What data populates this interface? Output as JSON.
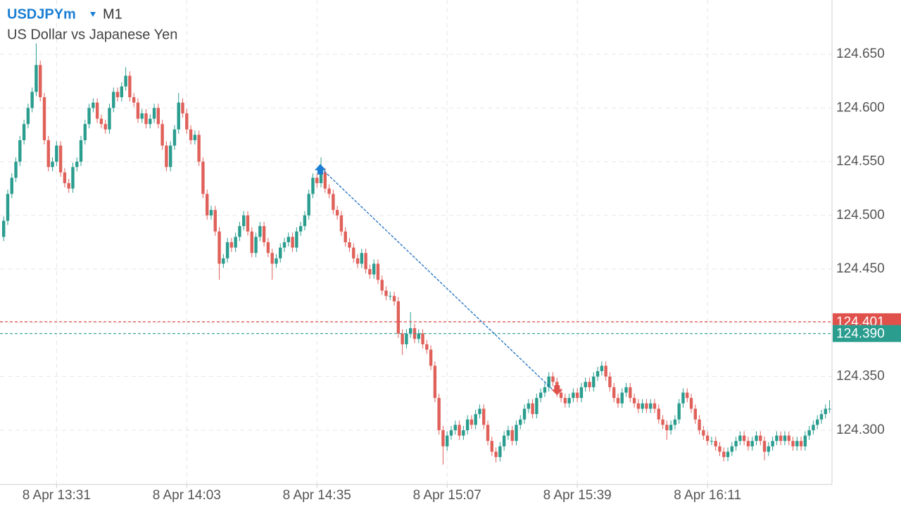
{
  "chart_data": {
    "type": "candlestick",
    "symbol": "USDJPYm",
    "timeframe": "M1",
    "description": "US Dollar vs Japanese Yen",
    "up_color": "#2a9d8f",
    "down_color": "#e0605a",
    "grid": true,
    "ylim": [
      124.2495,
      124.7005
    ],
    "yticks": [
      {
        "value": 124.3,
        "label": "124.300"
      },
      {
        "value": 124.35,
        "label": "124.350"
      },
      {
        "value": 124.4,
        "label": "124.400"
      },
      {
        "value": 124.45,
        "label": "124.450"
      },
      {
        "value": 124.5,
        "label": "124.500"
      },
      {
        "value": 124.55,
        "label": "124.550"
      },
      {
        "value": 124.6,
        "label": "124.600"
      },
      {
        "value": 124.65,
        "label": "124.650"
      }
    ],
    "xlim": [
      -0.9,
      203.6
    ],
    "xticks": [
      {
        "value": 13,
        "label": "8 Apr 13:31"
      },
      {
        "value": 45,
        "label": "8 Apr 14:03"
      },
      {
        "value": 77,
        "label": "8 Apr 14:35"
      },
      {
        "value": 109,
        "label": "8 Apr 15:07"
      },
      {
        "value": 141,
        "label": "8 Apr 15:39"
      },
      {
        "value": 173,
        "label": "8 Apr 16:11"
      }
    ],
    "price_lines": [
      {
        "value": 124.401,
        "label": "124.401",
        "color": "#e0514c"
      },
      {
        "value": 124.39,
        "label": "124.390",
        "color": "#2a9d8f"
      }
    ],
    "trade": {
      "entry": {
        "index": 78,
        "price": 124.544
      },
      "exit": {
        "index": 136,
        "price": 124.334
      }
    },
    "candles": [
      [
        124.48,
        124.499,
        124.476,
        124.495
      ],
      [
        124.495,
        124.524,
        124.491,
        124.52
      ],
      [
        124.52,
        124.539,
        124.516,
        124.535
      ],
      [
        124.535,
        124.554,
        124.531,
        124.55
      ],
      [
        124.55,
        124.574,
        124.546,
        124.57
      ],
      [
        124.57,
        124.589,
        124.566,
        124.585
      ],
      [
        124.585,
        124.604,
        124.581,
        124.6
      ],
      [
        124.6,
        124.619,
        124.596,
        124.615
      ],
      [
        124.615,
        124.66,
        124.611,
        124.64
      ],
      [
        124.64,
        124.644,
        124.606,
        124.61
      ],
      [
        124.61,
        124.614,
        124.566,
        124.57
      ],
      [
        124.57,
        124.574,
        124.541,
        124.545
      ],
      [
        124.545,
        124.554,
        124.541,
        124.55
      ],
      [
        124.55,
        124.569,
        124.546,
        124.565
      ],
      [
        124.565,
        124.569,
        124.536,
        124.54
      ],
      [
        124.54,
        124.544,
        124.526,
        124.53
      ],
      [
        124.53,
        124.534,
        124.521,
        124.525
      ],
      [
        124.525,
        124.549,
        124.521,
        124.545
      ],
      [
        124.545,
        124.554,
        124.541,
        124.55
      ],
      [
        124.55,
        124.574,
        124.546,
        124.57
      ],
      [
        124.57,
        124.589,
        124.566,
        124.585
      ],
      [
        124.585,
        124.604,
        124.581,
        124.6
      ],
      [
        124.6,
        124.609,
        124.596,
        124.605
      ],
      [
        124.605,
        124.609,
        124.586,
        124.59
      ],
      [
        124.59,
        124.594,
        124.581,
        124.585
      ],
      [
        124.585,
        124.589,
        124.576,
        124.58
      ],
      [
        124.58,
        124.604,
        124.576,
        124.6
      ],
      [
        124.6,
        124.619,
        124.596,
        124.615
      ],
      [
        124.615,
        124.619,
        124.606,
        124.61
      ],
      [
        124.61,
        124.624,
        124.606,
        124.62
      ],
      [
        124.62,
        124.638,
        124.616,
        124.63
      ],
      [
        124.63,
        124.634,
        124.606,
        124.61
      ],
      [
        124.61,
        124.614,
        124.601,
        124.605
      ],
      [
        124.605,
        124.609,
        124.586,
        124.59
      ],
      [
        124.59,
        124.599,
        124.586,
        124.595
      ],
      [
        124.595,
        124.599,
        124.581,
        124.585
      ],
      [
        124.585,
        124.594,
        124.581,
        124.59
      ],
      [
        124.59,
        124.604,
        124.586,
        124.6
      ],
      [
        124.6,
        124.604,
        124.581,
        124.585
      ],
      [
        124.585,
        124.589,
        124.561,
        124.565
      ],
      [
        124.565,
        124.569,
        124.541,
        124.545
      ],
      [
        124.545,
        124.569,
        124.541,
        124.565
      ],
      [
        124.565,
        124.584,
        124.561,
        124.58
      ],
      [
        124.58,
        124.614,
        124.576,
        124.605
      ],
      [
        124.605,
        124.609,
        124.591,
        124.595
      ],
      [
        124.595,
        124.599,
        124.576,
        124.58
      ],
      [
        124.58,
        124.584,
        124.566,
        124.57
      ],
      [
        124.57,
        124.579,
        124.566,
        124.575
      ],
      [
        124.575,
        124.579,
        124.546,
        124.55
      ],
      [
        124.55,
        124.554,
        124.516,
        124.52
      ],
      [
        124.52,
        124.524,
        124.496,
        124.5
      ],
      [
        124.5,
        124.509,
        124.496,
        124.505
      ],
      [
        124.505,
        124.509,
        124.481,
        124.485
      ],
      [
        124.485,
        124.489,
        124.44,
        124.455
      ],
      [
        124.455,
        124.464,
        124.451,
        124.46
      ],
      [
        124.46,
        124.479,
        124.456,
        124.475
      ],
      [
        124.475,
        124.479,
        124.466,
        124.47
      ],
      [
        124.47,
        124.484,
        124.466,
        124.48
      ],
      [
        124.48,
        124.494,
        124.476,
        124.49
      ],
      [
        124.49,
        124.504,
        124.486,
        124.5
      ],
      [
        124.5,
        124.504,
        124.481,
        124.485
      ],
      [
        124.485,
        124.489,
        124.461,
        124.465
      ],
      [
        124.465,
        124.484,
        124.461,
        124.48
      ],
      [
        124.48,
        124.494,
        124.476,
        124.49
      ],
      [
        124.49,
        124.494,
        124.471,
        124.475
      ],
      [
        124.475,
        124.479,
        124.461,
        124.465
      ],
      [
        124.465,
        124.469,
        124.44,
        124.455
      ],
      [
        124.455,
        124.464,
        124.451,
        124.46
      ],
      [
        124.46,
        124.474,
        124.456,
        124.47
      ],
      [
        124.47,
        124.479,
        124.466,
        124.475
      ],
      [
        124.475,
        124.484,
        124.471,
        124.48
      ],
      [
        124.48,
        124.484,
        124.466,
        124.47
      ],
      [
        124.47,
        124.489,
        124.466,
        124.485
      ],
      [
        124.485,
        124.494,
        124.481,
        124.49
      ],
      [
        124.49,
        124.504,
        124.486,
        124.5
      ],
      [
        124.5,
        124.524,
        124.496,
        124.52
      ],
      [
        124.52,
        124.539,
        124.516,
        124.535
      ],
      [
        124.535,
        124.539,
        124.526,
        124.53
      ],
      [
        124.53,
        124.554,
        124.526,
        124.54
      ],
      [
        124.54,
        124.544,
        124.521,
        124.525
      ],
      [
        124.525,
        124.529,
        124.516,
        124.52
      ],
      [
        124.52,
        124.524,
        124.501,
        124.505
      ],
      [
        124.505,
        124.509,
        124.496,
        124.5
      ],
      [
        124.5,
        124.504,
        124.481,
        124.485
      ],
      [
        124.485,
        124.489,
        124.471,
        124.475
      ],
      [
        124.475,
        124.479,
        124.466,
        124.47
      ],
      [
        124.47,
        124.474,
        124.456,
        124.46
      ],
      [
        124.46,
        124.464,
        124.451,
        124.455
      ],
      [
        124.455,
        124.469,
        124.451,
        124.465
      ],
      [
        124.465,
        124.469,
        124.446,
        124.45
      ],
      [
        124.45,
        124.454,
        124.441,
        124.445
      ],
      [
        124.445,
        124.459,
        124.441,
        124.455
      ],
      [
        124.455,
        124.459,
        124.436,
        124.44
      ],
      [
        124.44,
        124.444,
        124.426,
        124.43
      ],
      [
        124.43,
        124.434,
        124.421,
        124.425
      ],
      [
        124.425,
        124.429,
        124.421,
        124.425
      ],
      [
        124.425,
        124.429,
        124.416,
        124.42
      ],
      [
        124.42,
        124.424,
        124.386,
        124.39
      ],
      [
        124.39,
        124.394,
        124.37,
        124.38
      ],
      [
        124.38,
        124.394,
        124.376,
        124.39
      ],
      [
        124.39,
        124.41,
        124.386,
        124.395
      ],
      [
        124.395,
        124.399,
        124.381,
        124.385
      ],
      [
        124.385,
        124.394,
        124.381,
        124.39
      ],
      [
        124.39,
        124.394,
        124.376,
        124.38
      ],
      [
        124.38,
        124.384,
        124.371,
        124.375
      ],
      [
        124.375,
        124.379,
        124.356,
        124.36
      ],
      [
        124.36,
        124.364,
        124.326,
        124.33
      ],
      [
        124.33,
        124.334,
        124.296,
        124.3
      ],
      [
        124.3,
        124.304,
        124.268,
        124.285
      ],
      [
        124.285,
        124.299,
        124.281,
        124.295
      ],
      [
        124.295,
        124.304,
        124.291,
        124.3
      ],
      [
        124.3,
        124.309,
        124.296,
        124.305
      ],
      [
        124.305,
        124.309,
        124.291,
        124.295
      ],
      [
        124.295,
        124.304,
        124.291,
        124.3
      ],
      [
        124.3,
        124.314,
        124.296,
        124.31
      ],
      [
        124.31,
        124.314,
        124.301,
        124.305
      ],
      [
        124.305,
        124.319,
        124.301,
        124.315
      ],
      [
        124.315,
        124.324,
        124.311,
        124.32
      ],
      [
        124.32,
        124.324,
        124.301,
        124.305
      ],
      [
        124.305,
        124.309,
        124.286,
        124.29
      ],
      [
        124.29,
        124.294,
        124.276,
        124.28
      ],
      [
        124.28,
        124.284,
        124.27,
        124.275
      ],
      [
        124.275,
        124.289,
        124.271,
        124.285
      ],
      [
        124.285,
        124.299,
        124.281,
        124.295
      ],
      [
        124.295,
        124.304,
        124.291,
        124.3
      ],
      [
        124.3,
        124.304,
        124.286,
        124.29
      ],
      [
        124.29,
        124.309,
        124.286,
        124.305
      ],
      [
        124.305,
        124.314,
        124.301,
        124.31
      ],
      [
        124.31,
        124.324,
        124.306,
        124.32
      ],
      [
        124.32,
        124.329,
        124.316,
        124.325
      ],
      [
        124.325,
        124.329,
        124.311,
        124.315
      ],
      [
        124.315,
        124.334,
        124.311,
        124.33
      ],
      [
        124.33,
        124.339,
        124.326,
        124.335
      ],
      [
        124.335,
        124.344,
        124.331,
        124.34
      ],
      [
        124.34,
        124.354,
        124.336,
        124.35
      ],
      [
        124.35,
        124.354,
        124.341,
        124.345
      ],
      [
        124.345,
        124.349,
        124.331,
        124.335
      ],
      [
        124.335,
        124.339,
        124.326,
        124.33
      ],
      [
        124.33,
        124.334,
        124.321,
        124.325
      ],
      [
        124.325,
        124.334,
        124.321,
        124.33
      ],
      [
        124.33,
        124.339,
        124.326,
        124.335
      ],
      [
        124.335,
        124.339,
        124.326,
        124.33
      ],
      [
        124.33,
        124.344,
        124.326,
        124.34
      ],
      [
        124.34,
        124.349,
        124.336,
        124.345
      ],
      [
        124.345,
        124.349,
        124.336,
        124.34
      ],
      [
        124.34,
        124.354,
        124.336,
        124.35
      ],
      [
        124.35,
        124.359,
        124.346,
        124.355
      ],
      [
        124.355,
        124.364,
        124.351,
        124.36
      ],
      [
        124.36,
        124.364,
        124.346,
        124.35
      ],
      [
        124.35,
        124.354,
        124.336,
        124.34
      ],
      [
        124.34,
        124.344,
        124.326,
        124.33
      ],
      [
        124.33,
        124.334,
        124.321,
        124.325
      ],
      [
        124.325,
        124.339,
        124.321,
        124.335
      ],
      [
        124.335,
        124.344,
        124.331,
        124.34
      ],
      [
        124.34,
        124.344,
        124.326,
        124.33
      ],
      [
        124.33,
        124.334,
        124.321,
        124.325
      ],
      [
        124.325,
        124.329,
        124.316,
        124.32
      ],
      [
        124.32,
        124.329,
        124.316,
        124.325
      ],
      [
        124.325,
        124.329,
        124.316,
        124.32
      ],
      [
        124.32,
        124.329,
        124.316,
        124.325
      ],
      [
        124.325,
        124.329,
        124.316,
        124.32
      ],
      [
        124.32,
        124.324,
        124.306,
        124.31
      ],
      [
        124.31,
        124.314,
        124.301,
        124.305
      ],
      [
        124.305,
        124.309,
        124.291,
        124.3
      ],
      [
        124.3,
        124.309,
        124.296,
        124.305
      ],
      [
        124.305,
        124.314,
        124.301,
        124.31
      ],
      [
        124.31,
        124.329,
        124.306,
        124.325
      ],
      [
        124.325,
        124.339,
        124.321,
        124.335
      ],
      [
        124.335,
        124.339,
        124.326,
        124.33
      ],
      [
        124.33,
        124.334,
        124.316,
        124.32
      ],
      [
        124.32,
        124.324,
        124.306,
        124.31
      ],
      [
        124.31,
        124.314,
        124.296,
        124.3
      ],
      [
        124.3,
        124.304,
        124.291,
        124.295
      ],
      [
        124.295,
        124.299,
        124.286,
        124.29
      ],
      [
        124.29,
        124.294,
        124.286,
        124.29
      ],
      [
        124.29,
        124.294,
        124.281,
        124.285
      ],
      [
        124.285,
        124.289,
        124.276,
        124.28
      ],
      [
        124.28,
        124.284,
        124.271,
        124.275
      ],
      [
        124.275,
        124.284,
        124.271,
        124.28
      ],
      [
        124.28,
        124.289,
        124.276,
        124.285
      ],
      [
        124.285,
        124.294,
        124.281,
        124.29
      ],
      [
        124.29,
        124.299,
        124.286,
        124.295
      ],
      [
        124.295,
        124.299,
        124.286,
        124.29
      ],
      [
        124.29,
        124.294,
        124.281,
        124.285
      ],
      [
        124.285,
        124.294,
        124.281,
        124.29
      ],
      [
        124.29,
        124.299,
        124.286,
        124.295
      ],
      [
        124.295,
        124.299,
        124.286,
        124.29
      ],
      [
        124.29,
        124.294,
        124.272,
        124.28
      ],
      [
        124.28,
        124.289,
        124.276,
        124.285
      ],
      [
        124.285,
        124.294,
        124.281,
        124.29
      ],
      [
        124.29,
        124.299,
        124.286,
        124.295
      ],
      [
        124.295,
        124.299,
        124.286,
        124.29
      ],
      [
        124.29,
        124.299,
        124.286,
        124.295
      ],
      [
        124.295,
        124.299,
        124.286,
        124.29
      ],
      [
        124.29,
        124.294,
        124.281,
        124.285
      ],
      [
        124.285,
        124.294,
        124.281,
        124.29
      ],
      [
        124.29,
        124.294,
        124.281,
        124.285
      ],
      [
        124.285,
        124.299,
        124.281,
        124.295
      ],
      [
        124.295,
        124.304,
        124.291,
        124.3
      ],
      [
        124.3,
        124.309,
        124.296,
        124.305
      ],
      [
        124.305,
        124.314,
        124.301,
        124.31
      ],
      [
        124.31,
        124.319,
        124.306,
        124.315
      ],
      [
        124.315,
        124.324,
        124.311,
        124.32
      ],
      [
        124.32,
        124.328,
        124.316,
        124.32
      ]
    ]
  }
}
